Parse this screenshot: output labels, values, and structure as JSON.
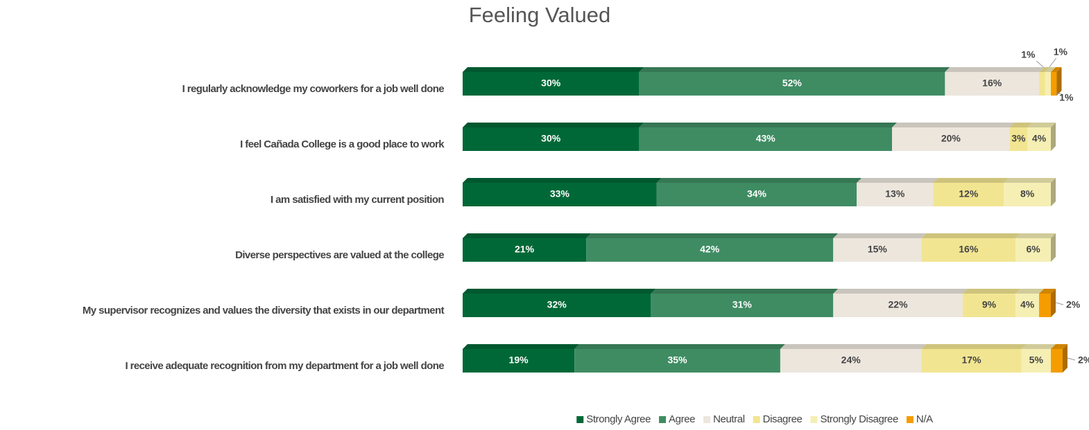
{
  "chart_data": {
    "type": "stacked-bar-horizontal",
    "title": "Feeling Valued",
    "categories": [
      "I regularly acknowledge my coworkers for a job well done",
      "I feel Cañada College is a good place to work",
      "I am satisfied with my current position",
      "Diverse perspectives are valued at the college",
      "My supervisor recognizes and values the diversity that exists in our department",
      "I receive adequate recognition from my department for a job well done"
    ],
    "xlim": [
      0,
      100
    ],
    "legend": "bottom",
    "series": [
      {
        "name": "Strongly Agree",
        "color": "#006837",
        "values": [
          30,
          30,
          33,
          21,
          32,
          19
        ],
        "value_labels": [
          "30%",
          "30%",
          "33%",
          "21%",
          "32%",
          "19%"
        ]
      },
      {
        "name": "Agree",
        "color": "#3f8c63",
        "values": [
          52,
          43,
          34,
          42,
          31,
          35
        ],
        "value_labels": [
          "52%",
          "43%",
          "34%",
          "42%",
          "31%",
          "35%"
        ]
      },
      {
        "name": "Neutral",
        "color": "#ece6dd",
        "values": [
          16,
          20,
          13,
          15,
          22,
          24
        ],
        "value_labels": [
          "16%",
          "20%",
          "13%",
          "15%",
          "22%",
          "24%"
        ]
      },
      {
        "name": "Disagree",
        "color": "#f2e592",
        "values": [
          1,
          3,
          12,
          16,
          9,
          17
        ],
        "value_labels": [
          "1%",
          "3%",
          "12%",
          "16%",
          "9%",
          "17%"
        ]
      },
      {
        "name": "Strongly Disagree",
        "color": "#f5efb4",
        "values": [
          1,
          4,
          8,
          6,
          4,
          5
        ],
        "value_labels": [
          "1%",
          "4%",
          "8%",
          "6%",
          "4%",
          "5%"
        ]
      },
      {
        "name": "N/A",
        "color": "#f59c00",
        "values": [
          1,
          null,
          null,
          null,
          2,
          2
        ],
        "value_labels": [
          "1%",
          null,
          null,
          null,
          "2%",
          "2%"
        ]
      }
    ]
  }
}
